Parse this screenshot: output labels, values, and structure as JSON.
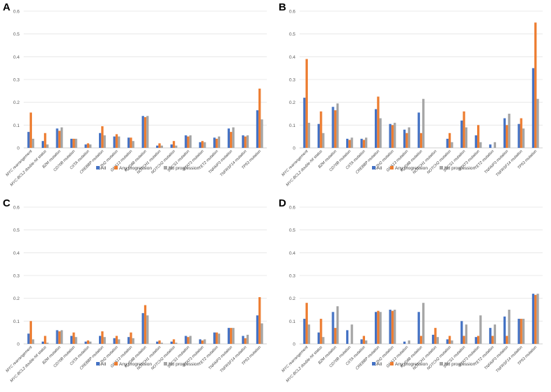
{
  "legend": [
    {
      "name": "All",
      "color": "#4472C4"
    },
    {
      "name": "Any progression",
      "color": "#ED7D31"
    },
    {
      "name": "No progression",
      "color": "#A5A5A5"
    }
  ],
  "chart_data": [
    {
      "panel": "A",
      "type": "bar",
      "ylim": [
        0,
        0.6
      ],
      "yticks": [
        "0",
        "0.1",
        "0.2",
        "0.3",
        "0.4",
        "0.5",
        "0.6"
      ],
      "categories": [
        "MYC rearrangement",
        "MYC-BCL2 double-hit status",
        "B2M mutation",
        "CD70B mutation",
        "CIITA mutation",
        "CREBBP mutation",
        "EZH2 mutation",
        "GNA13 mutation",
        "MYD88 mutation",
        "NOTCH1 mutation",
        "NOTCH2 mutation",
        "SOCS1 mutation",
        "STAT3 mutation",
        "TET2 mutation",
        "TNFAIP3 mutation",
        "TNFRSF14 mutation",
        "TP53 mutation"
      ],
      "series": [
        {
          "name": "All",
          "values": [
            0.07,
            0.03,
            0.085,
            0.04,
            0.015,
            0.065,
            0.05,
            0.045,
            0.14,
            0.01,
            0.015,
            0.055,
            0.025,
            0.045,
            0.085,
            0.055,
            0.165
          ]
        },
        {
          "name": "Any progression",
          "values": [
            0.155,
            0.065,
            0.075,
            0.04,
            0.02,
            0.095,
            0.06,
            0.045,
            0.135,
            0.02,
            0.03,
            0.05,
            0.03,
            0.04,
            0.07,
            0.05,
            0.26
          ]
        },
        {
          "name": "No progression",
          "values": [
            0.04,
            0.015,
            0.09,
            0.04,
            0.015,
            0.055,
            0.05,
            0.03,
            0.14,
            0.01,
            0.01,
            0.055,
            0.025,
            0.05,
            0.09,
            0.055,
            0.125
          ]
        }
      ]
    },
    {
      "panel": "B",
      "type": "bar",
      "ylim": [
        0,
        0.6
      ],
      "yticks": [
        "0",
        "0.1",
        "0.2",
        "0.3",
        "0.4",
        "0.5",
        "0.6"
      ],
      "categories": [
        "MYC rearrangement",
        "MYC-BCL2 double-hit status",
        "B2M mutation",
        "CD70B mutation",
        "CIITA mutation",
        "CREBBP mutation",
        "EZH2 mutation",
        "GNA13 mutation",
        "MYD88 mutation",
        "NOTCH1 mutation",
        "NOTCH2 mutation",
        "SOCS1 mutation",
        "STAT3 mutation",
        "TET2 mutation",
        "TNFAIP3 mutation",
        "TNFRSF14 mutation",
        "TP53 mutation"
      ],
      "series": [
        {
          "name": "All",
          "values": [
            0.22,
            0.105,
            0.18,
            0.04,
            0.04,
            0.17,
            0.105,
            0.08,
            0.155,
            0,
            0.04,
            0.12,
            0.055,
            0.015,
            0.13,
            0.105,
            0.35
          ]
        },
        {
          "name": "Any progression",
          "values": [
            0.39,
            0.16,
            0.165,
            0.035,
            0.035,
            0.225,
            0.1,
            0.065,
            0.065,
            0,
            0.065,
            0.16,
            0.1,
            0,
            0.1,
            0.13,
            0.55
          ]
        },
        {
          "name": "No progression",
          "values": [
            0.11,
            0.065,
            0.195,
            0.045,
            0.045,
            0.13,
            0.11,
            0.09,
            0.215,
            0,
            0.025,
            0.09,
            0.025,
            0.025,
            0.15,
            0.085,
            0.215
          ]
        }
      ]
    },
    {
      "panel": "C",
      "type": "bar",
      "ylim": [
        0,
        0.6
      ],
      "yticks": [
        "0",
        "0.1",
        "0.2",
        "0.3",
        "0.4",
        "0.5",
        "0.6"
      ],
      "categories": [
        "MYC rearrangement",
        "MYC-BCL2 double-hit status",
        "B2M mutation",
        "CD70B mutation",
        "CIITA mutation",
        "CREBBP mutation",
        "EZH2 mutation",
        "GNA13 mutation",
        "MYD88 mutation",
        "NOTCH1 mutation",
        "NOTCH2 mutation",
        "SOCS1 mutation",
        "STAT3 mutation",
        "TET2 mutation",
        "TNFAIP3 mutation",
        "TNFRSF14 mutation",
        "TP53 mutation"
      ],
      "series": [
        {
          "name": "All",
          "values": [
            0.045,
            0.01,
            0.06,
            0.035,
            0.01,
            0.035,
            0.025,
            0.03,
            0.135,
            0.01,
            0.01,
            0.035,
            0.02,
            0.05,
            0.07,
            0.035,
            0.125
          ]
        },
        {
          "name": "Any progression",
          "values": [
            0.1,
            0.035,
            0.055,
            0.05,
            0.015,
            0.055,
            0.035,
            0.05,
            0.17,
            0.015,
            0.02,
            0.03,
            0.015,
            0.05,
            0.07,
            0.025,
            0.205
          ]
        },
        {
          "name": "No progression",
          "values": [
            0.02,
            0.005,
            0.06,
            0.03,
            0.01,
            0.03,
            0.02,
            0.025,
            0.125,
            0.005,
            0.005,
            0.035,
            0.02,
            0.045,
            0.07,
            0.04,
            0.09
          ]
        }
      ]
    },
    {
      "panel": "D",
      "type": "bar",
      "ylim": [
        0,
        0.6
      ],
      "yticks": [
        "0",
        "0.1",
        "0.2",
        "0.3",
        "0.4",
        "0.5",
        "0.6"
      ],
      "categories": [
        "MYC rearrangement",
        "MYC-BCL2 double-hit status",
        "B2M mutation",
        "CD70B mutation",
        "CIITA mutation",
        "CREBBP mutation",
        "EZH2 mutation",
        "GNA13 mutation",
        "MYD88 mutation",
        "NOTCH1 mutation",
        "NOTCH2 mutation",
        "SOCS1 mutation",
        "STAT3 mutation",
        "TET2 mutation",
        "TNFAIP3 mutation",
        "TNFRSF14 mutation",
        "TP53 mutation"
      ],
      "series": [
        {
          "name": "All",
          "values": [
            0.11,
            0.05,
            0.14,
            0.06,
            0.02,
            0.14,
            0.15,
            0.01,
            0.14,
            0.04,
            0.02,
            0.1,
            0.03,
            0.07,
            0.12,
            0.11,
            0.22
          ]
        },
        {
          "name": "Any progression",
          "values": [
            0.18,
            0.11,
            0.07,
            0,
            0.035,
            0.145,
            0.145,
            0,
            0.035,
            0.07,
            0.035,
            0.035,
            0.035,
            0.035,
            0.035,
            0.11,
            0.215
          ]
        },
        {
          "name": "No progression",
          "values": [
            0.085,
            0.03,
            0.165,
            0.085,
            0.015,
            0.14,
            0.15,
            0.015,
            0.18,
            0.03,
            0.015,
            0.085,
            0.125,
            0.085,
            0.15,
            0.11,
            0.22
          ]
        }
      ]
    }
  ]
}
